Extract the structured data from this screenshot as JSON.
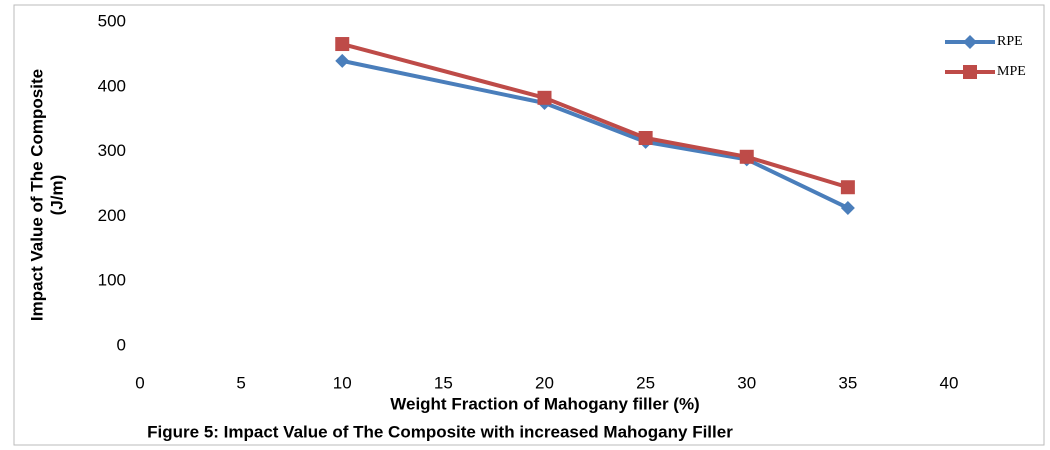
{
  "chart_data": {
    "type": "line",
    "caption": "Figure 5: Impact Value of The Composite with increased Mahogany Filler",
    "x_label": "Weight Fraction of Mahogany filler (%)",
    "y_label": [
      "Impact Value of The Composite",
      "(J/m)"
    ],
    "x": [
      10,
      20,
      25,
      30,
      35
    ],
    "series": [
      {
        "name": "RPE",
        "color": "#4a7ebb",
        "marker": "diamond",
        "values": [
          440,
          375,
          315,
          288,
          213
        ]
      },
      {
        "name": "MPE",
        "color": "#be4b48",
        "marker": "square",
        "values": [
          466,
          383,
          321,
          292,
          245
        ]
      }
    ],
    "xlim": [
      0,
      40
    ],
    "xticks": [
      0,
      5,
      10,
      15,
      20,
      25,
      30,
      35,
      40
    ],
    "ylim": [
      0,
      500
    ],
    "yticks": [
      0,
      100,
      200,
      300,
      400,
      500
    ],
    "legend": "top-right"
  }
}
